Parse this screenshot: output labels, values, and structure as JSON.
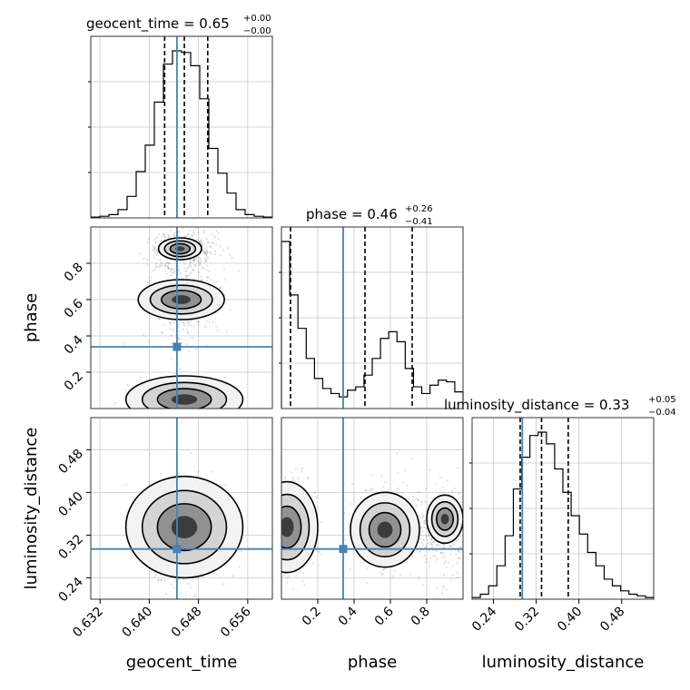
{
  "chart_data": {
    "type": "corner",
    "parameters": [
      "geocent_time",
      "phase",
      "luminosity_distance"
    ],
    "truth": {
      "geocent_time": 0.6445,
      "phase": 0.34,
      "luminosity_distance": 0.294
    },
    "titles": [
      {
        "param": "geocent_time",
        "prefix": "geocent_time = 0.65",
        "plus": "+0.00",
        "minus": "−0.00"
      },
      {
        "param": "phase",
        "prefix": "phase = 0.46",
        "plus": "+0.26",
        "minus": "−0.41"
      },
      {
        "param": "luminosity_distance",
        "prefix": "luminosity_distance = 0.33",
        "plus": "+0.05",
        "minus": "−0.04"
      }
    ],
    "ranges": {
      "geocent_time": [
        0.6305,
        0.66
      ],
      "phase": [
        0.0,
        1.0
      ],
      "luminosity_distance": [
        0.2,
        0.54
      ]
    },
    "ticks": {
      "geocent_time": [
        "0.632",
        "0.640",
        "0.648",
        "0.656"
      ],
      "phase_x": [
        "0.2",
        "0.4",
        "0.6",
        "0.8"
      ],
      "phase_y": [
        "0.2",
        "0.4",
        "0.6",
        "0.8"
      ],
      "luminosity_distance_x": [
        "0.24",
        "0.32",
        "0.40",
        "0.48"
      ],
      "luminosity_distance_y": [
        "0.24",
        "0.32",
        "0.40",
        "0.48"
      ]
    },
    "quantiles": {
      "geocent_time": [
        0.6425,
        0.6457,
        0.6495
      ],
      "phase": [
        0.05,
        0.46,
        0.72
      ],
      "luminosity_distance": [
        0.29,
        0.33,
        0.38
      ]
    },
    "hist_geocent_time": [
      0.5,
      1,
      2,
      5,
      13,
      28,
      44,
      70,
      93,
      101,
      100,
      92,
      72,
      42,
      27,
      15,
      5,
      2,
      1,
      0.5
    ],
    "hist_phase": [
      100,
      68,
      48,
      30,
      18,
      12,
      9,
      7,
      11,
      13,
      20,
      30,
      42,
      46,
      40,
      24,
      13,
      9,
      14,
      17,
      16,
      10
    ],
    "hist_luminosity_distance": [
      1,
      3,
      8,
      20,
      38,
      66,
      85,
      98,
      100,
      93,
      78,
      64,
      50,
      39,
      28,
      20,
      12,
      8,
      5,
      3,
      2,
      1
    ],
    "grid": true,
    "truth_color": "#4682b4"
  }
}
